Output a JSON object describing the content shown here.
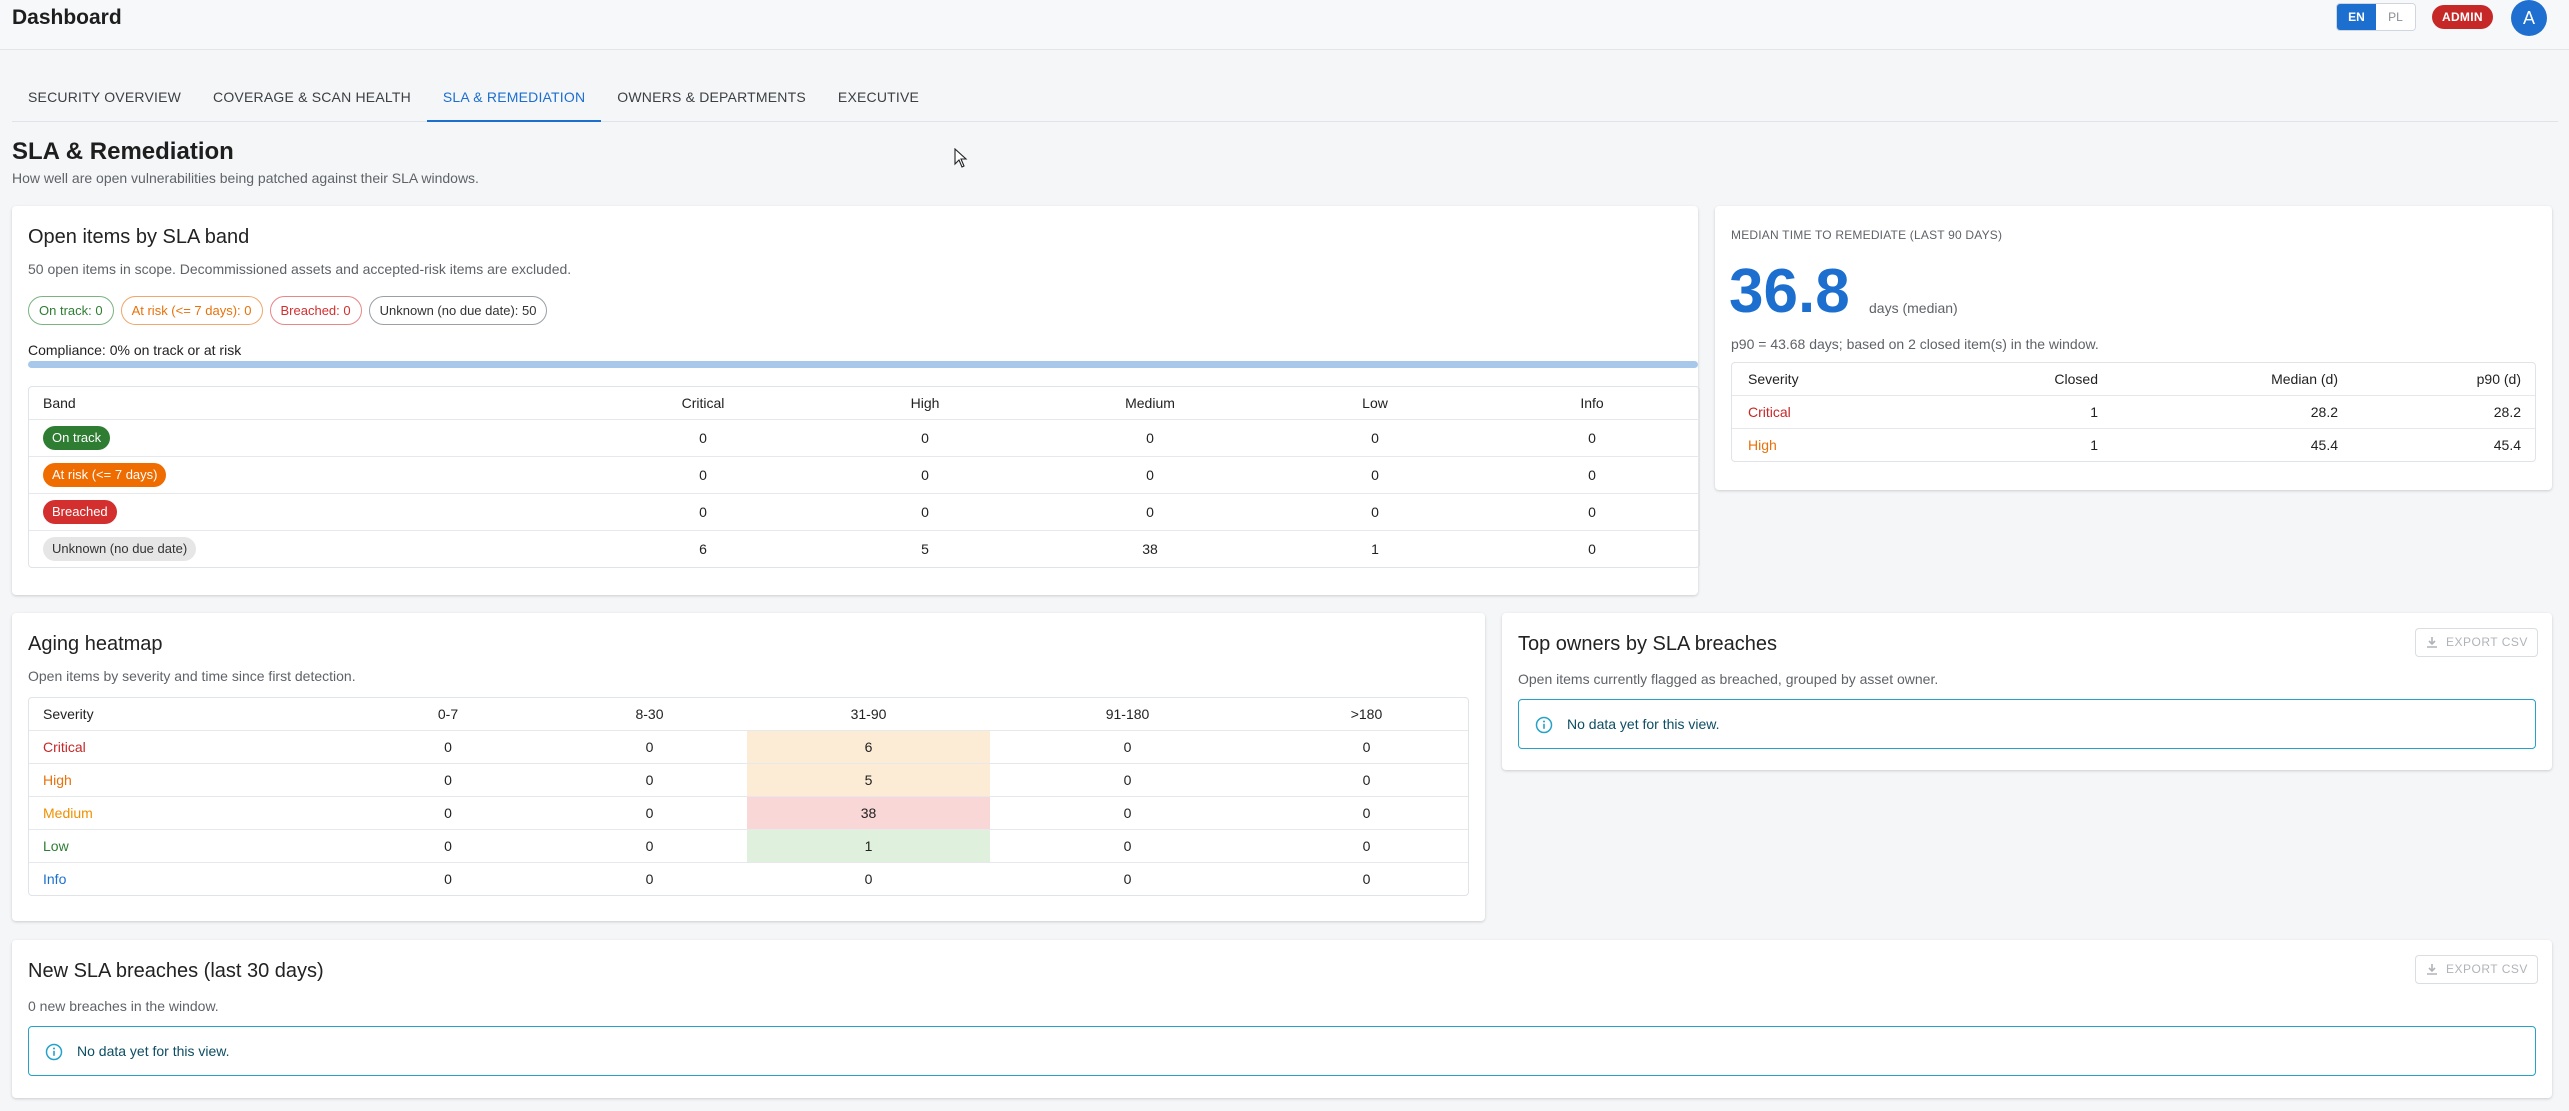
{
  "app": {
    "title": "Dashboard",
    "lang_en": "EN",
    "lang_pl": "PL",
    "role_badge": "ADMIN",
    "avatar_initial": "A"
  },
  "tabs": [
    {
      "label": "SECURITY OVERVIEW",
      "active": false
    },
    {
      "label": "COVERAGE & SCAN HEALTH",
      "active": false
    },
    {
      "label": "SLA & REMEDIATION",
      "active": true
    },
    {
      "label": "OWNERS & DEPARTMENTS",
      "active": false
    },
    {
      "label": "EXECUTIVE",
      "active": false
    }
  ],
  "page": {
    "title": "SLA & Remediation",
    "subtitle": "How well are open vulnerabilities being patched against their SLA windows."
  },
  "sla_band": {
    "title": "Open items by SLA band",
    "subtitle": "50 open items in scope. Decommissioned assets and accepted-risk items are excluded.",
    "chips": [
      "On track: 0",
      "At risk (<= 7 days): 0",
      "Breached: 0",
      "Unknown (no due date): 50"
    ],
    "compliance_label": "Compliance: 0% on track or at risk",
    "compliance_percent": 0,
    "columns": [
      "Band",
      "Critical",
      "High",
      "Medium",
      "Low",
      "Info"
    ],
    "rows": [
      {
        "band": "On track",
        "values": [
          "0",
          "0",
          "0",
          "0",
          "0"
        ]
      },
      {
        "band": "At risk (<= 7 days)",
        "values": [
          "0",
          "0",
          "0",
          "0",
          "0"
        ]
      },
      {
        "band": "Breached",
        "values": [
          "0",
          "0",
          "0",
          "0",
          "0"
        ]
      },
      {
        "band": "Unknown (no due date)",
        "values": [
          "6",
          "5",
          "38",
          "1",
          "0"
        ]
      }
    ]
  },
  "mttr": {
    "label": "MEDIAN TIME TO REMEDIATE (LAST 90 DAYS)",
    "value": "36.8",
    "unit": "days (median)",
    "note": "p90 = 43.68 days; based on 2 closed item(s) in the window.",
    "columns": [
      "Severity",
      "Closed",
      "Median (d)",
      "p90 (d)"
    ],
    "rows": [
      {
        "severity": "Critical",
        "values": [
          "1",
          "28.2",
          "28.2"
        ]
      },
      {
        "severity": "High",
        "values": [
          "1",
          "45.4",
          "45.4"
        ]
      }
    ]
  },
  "aging": {
    "title": "Aging heatmap",
    "subtitle": "Open items by severity and time since first detection.",
    "columns": [
      "Severity",
      "0-7",
      "8-30",
      "31-90",
      "91-180",
      ">180"
    ],
    "rows": [
      {
        "severity": "Critical",
        "values": [
          "0",
          "0",
          "6",
          "0",
          "0"
        ]
      },
      {
        "severity": "High",
        "values": [
          "0",
          "0",
          "5",
          "0",
          "0"
        ]
      },
      {
        "severity": "Medium",
        "values": [
          "0",
          "0",
          "38",
          "0",
          "0"
        ]
      },
      {
        "severity": "Low",
        "values": [
          "0",
          "0",
          "1",
          "0",
          "0"
        ]
      },
      {
        "severity": "Info",
        "values": [
          "0",
          "0",
          "0",
          "0",
          "0"
        ]
      }
    ]
  },
  "top_owners": {
    "title": "Top owners by SLA breaches",
    "subtitle": "Open items currently flagged as breached, grouped by asset owner.",
    "export_label": "EXPORT CSV",
    "empty_text": "No data yet for this view."
  },
  "new_breaches": {
    "title": "New SLA breaches (last 30 days)",
    "subtitle": "0 new breaches in the window.",
    "export_label": "EXPORT CSV",
    "empty_text": "No data yet for this view."
  }
}
